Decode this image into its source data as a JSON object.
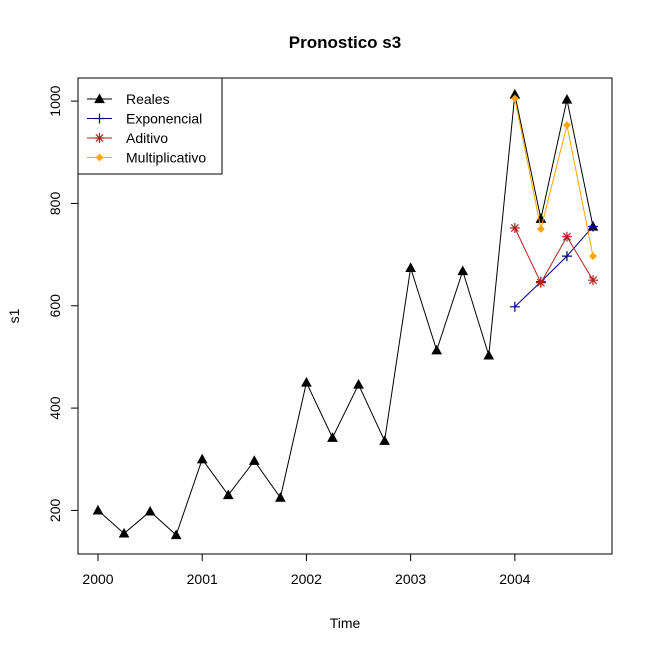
{
  "chart_data": {
    "type": "line",
    "title": "Pronostico s3",
    "xlabel": "Time",
    "ylabel": "s1",
    "xlim": [
      2000,
      2004.75
    ],
    "ylim": [
      150,
      1010
    ],
    "x_ticks": [
      2000,
      2001,
      2002,
      2003,
      2004
    ],
    "x_tick_labels": [
      "2000",
      "2001",
      "2002",
      "2003",
      "2004"
    ],
    "y_ticks": [
      200,
      400,
      600,
      800,
      1000
    ],
    "y_tick_labels": [
      "200",
      "400",
      "600",
      "800",
      "1000"
    ],
    "grid": false,
    "legend_position": "top-left",
    "series": [
      {
        "name": "Reales",
        "color": "#000000",
        "marker": "triangle",
        "x": [
          2000,
          2000.25,
          2000.5,
          2000.75,
          2001,
          2001.25,
          2001.5,
          2001.75,
          2002,
          2002.25,
          2002.5,
          2002.75,
          2003,
          2003.25,
          2003.5,
          2003.75,
          2004,
          2004.25,
          2004.5,
          2004.75
        ],
        "values": [
          200,
          155,
          198,
          152,
          300,
          230,
          297,
          225,
          450,
          342,
          446,
          336,
          674,
          513,
          668,
          503,
          1013,
          770,
          1003,
          755
        ]
      },
      {
        "name": "Exponencial",
        "color": "#000080",
        "marker": "plus",
        "x": [
          2004,
          2004.25,
          2004.5,
          2004.75
        ],
        "values": [
          598,
          647,
          697,
          755
        ]
      },
      {
        "name": "Aditivo",
        "color": "#b22222",
        "marker": "star",
        "x": [
          2004,
          2004.25,
          2004.5,
          2004.75
        ],
        "values": [
          752,
          645,
          735,
          650
        ]
      },
      {
        "name": "Multiplicativo",
        "color": "#ffa500",
        "marker": "diamond",
        "x": [
          2004,
          2004.25,
          2004.5,
          2004.75
        ],
        "values": [
          1005,
          750,
          953,
          697
        ]
      }
    ]
  }
}
